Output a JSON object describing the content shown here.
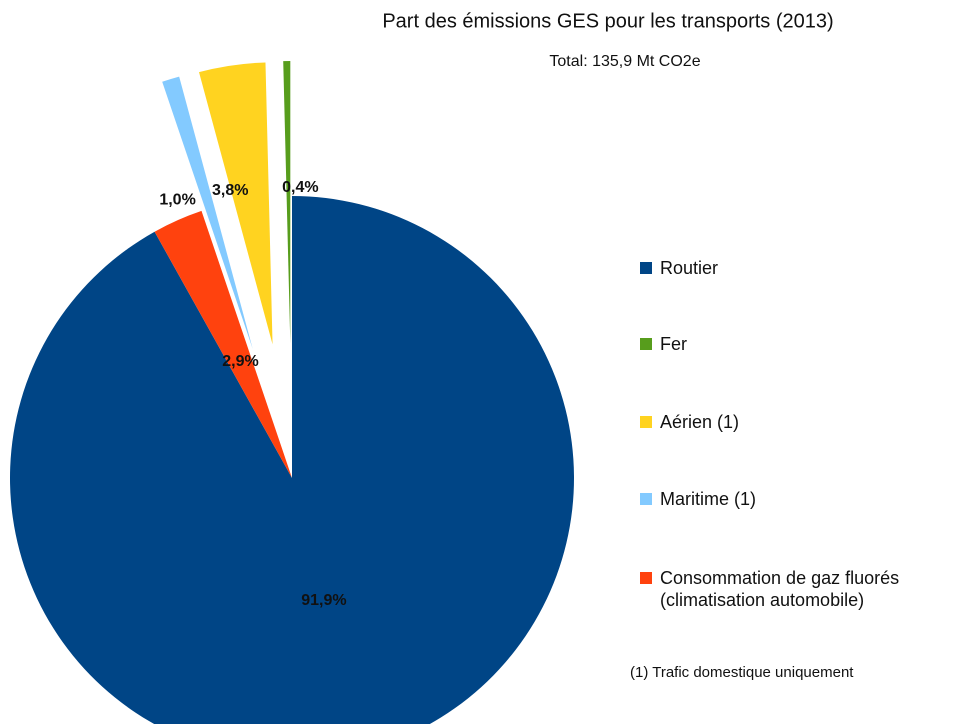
{
  "chart_data": {
    "type": "pie",
    "title": "Part des émissions GES pour les transports (2013)",
    "subtitle": "Total: 135,9 Mt CO2e",
    "note": "(1) Trafic domestique uniquement",
    "series": [
      {
        "name": "Routier",
        "color": "#004586",
        "value": 91.9,
        "value_label": "91,9%",
        "explode": false
      },
      {
        "name": "Fer",
        "color": "#579d1c",
        "value": 0.4,
        "value_label": "0,4%",
        "explode": true
      },
      {
        "name": "Aérien (1)",
        "color": "#ffd320",
        "value": 3.8,
        "value_label": "3,8%",
        "explode": true
      },
      {
        "name": "Maritime (1)",
        "color": "#83caff",
        "value": 1.0,
        "value_label": "1,0%",
        "explode": true
      },
      {
        "name": "Consommation de gaz fluorés\n(climatisation automobile)",
        "color": "#ff420e",
        "value": 2.9,
        "value_label": "2,9%",
        "explode": false
      }
    ]
  }
}
